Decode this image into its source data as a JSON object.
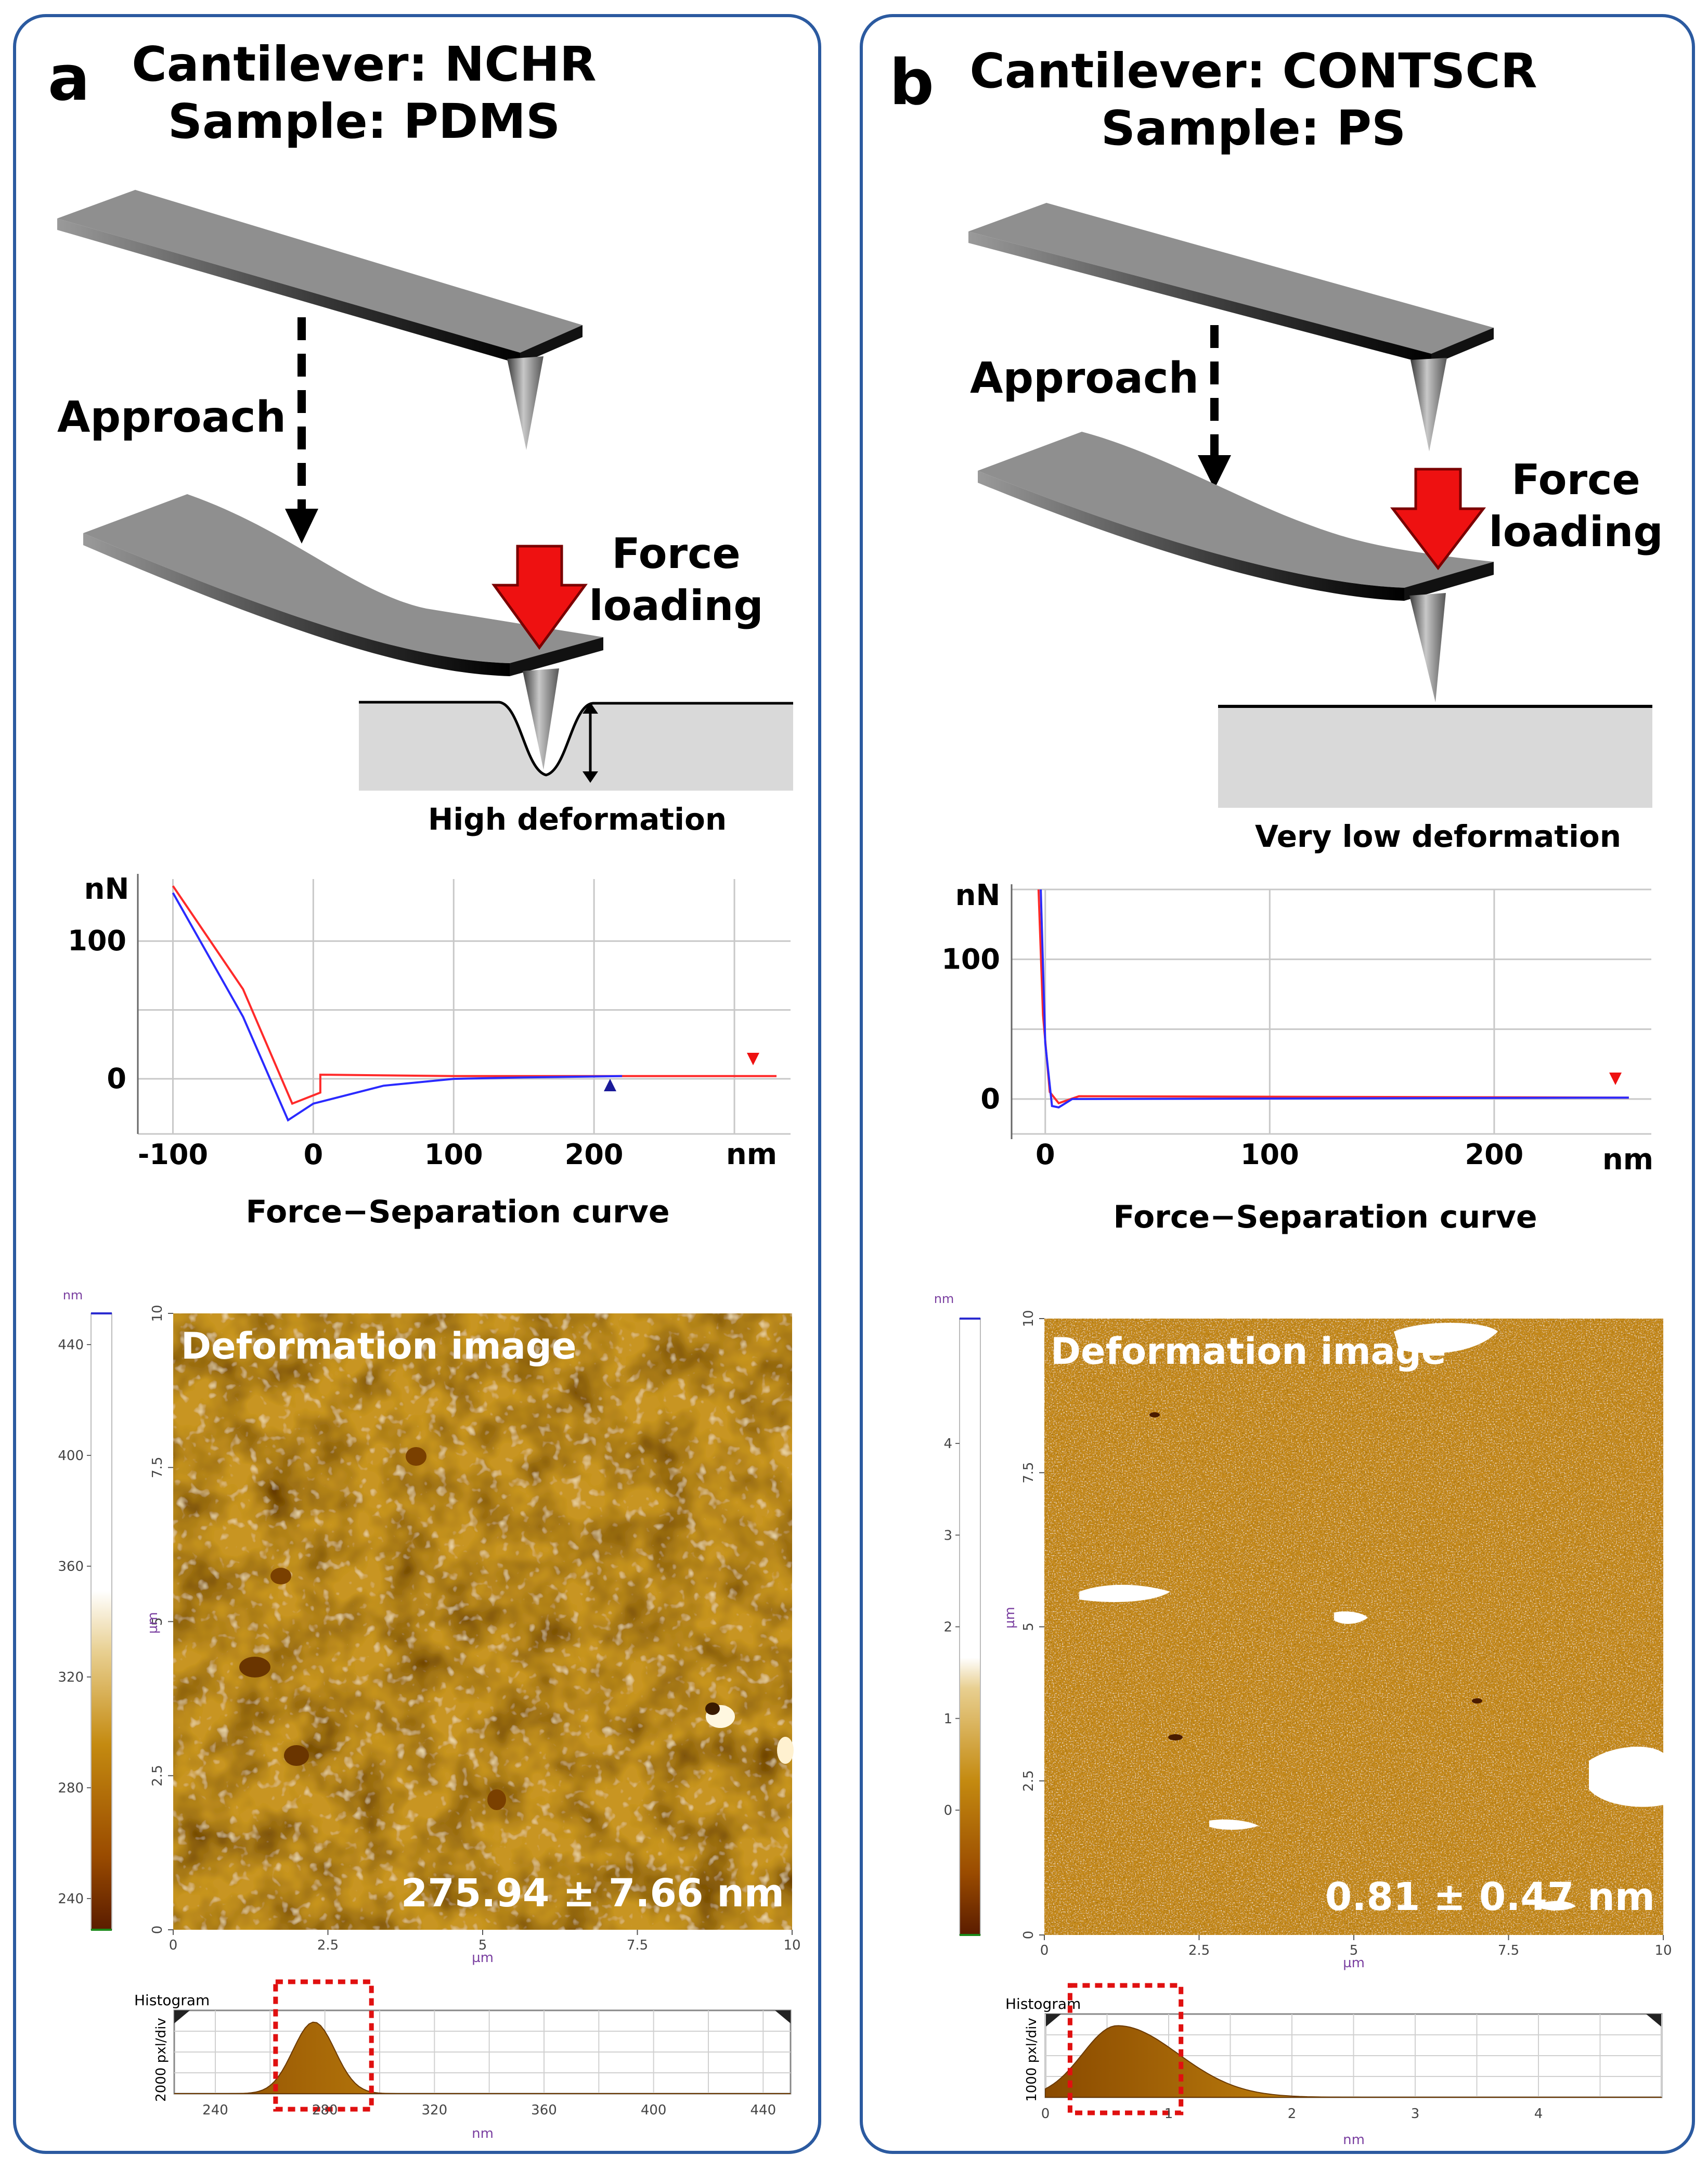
{
  "panels": [
    {
      "letter": "a",
      "title_line1": "Cantilever: NCHR",
      "title_line2": "Sample: PDMS",
      "approach_label": "Approach",
      "force_label_1": "Force",
      "force_label_2": "loading",
      "deformation_label": "High deformation",
      "curve_title": "Force−Separation curve",
      "overlay_title": "Deformation image",
      "measurement": "275.94 ± 7.66 nm",
      "histogram_label": "Histogram",
      "colorbar_unit": "nm",
      "colorbar_ticks": [
        "440",
        "400",
        "360",
        "320",
        "280",
        "240"
      ],
      "image_x_unit": "µm",
      "image_y_unit": "µm",
      "image_x_ticks": [
        "0",
        "2.5",
        "5",
        "7.5",
        "10"
      ],
      "image_y_ticks": [
        "10",
        "7.5",
        "5",
        "2.5",
        "0"
      ],
      "histogram_y_label": "2000 pxl/div",
      "histogram_x_unit": "nm"
    },
    {
      "letter": "b",
      "title_line1": "Cantilever: CONTSCR",
      "title_line2": "Sample: PS",
      "approach_label": "Approach",
      "force_label_1": "Force",
      "force_label_2": "loading",
      "deformation_label": "Very low deformation",
      "curve_title": "Force−Separation curve",
      "overlay_title": "Deformation image",
      "measurement": "0.81 ± 0.47 nm",
      "histogram_label": "Histogram",
      "colorbar_unit": "nm",
      "colorbar_ticks": [
        "4",
        "3",
        "2",
        "1",
        "0"
      ],
      "image_x_unit": "µm",
      "image_y_unit": "µm",
      "image_x_ticks": [
        "0",
        "2.5",
        "5",
        "7.5",
        "10"
      ],
      "image_y_ticks": [
        "10",
        "7.5",
        "5",
        "2.5",
        "0"
      ],
      "histogram_y_label": "1000 pxl/div",
      "histogram_x_unit": "nm"
    }
  ],
  "chart_data": [
    {
      "type": "line",
      "title": "Force−Separation curve",
      "xlabel": "nm",
      "ylabel": "nN",
      "x_ticks": [
        "-100",
        "0",
        "100",
        "200"
      ],
      "y_ticks": [
        "100",
        "0"
      ],
      "xlim": [
        -125,
        340
      ],
      "ylim": [
        -40,
        145
      ],
      "grid": true,
      "series": [
        {
          "color": "#ff2a2a",
          "x": [
            -100,
            -50,
            -15,
            5,
            5,
            100,
            330
          ],
          "y": [
            140,
            65,
            -18,
            -10,
            3,
            2,
            2
          ]
        },
        {
          "color": "#2a2aff",
          "x": [
            -100,
            -50,
            -18,
            0,
            50,
            100,
            150,
            220
          ],
          "y": [
            135,
            45,
            -30,
            -18,
            -5,
            0,
            1,
            2
          ]
        }
      ]
    },
    {
      "type": "line",
      "title": "Force−Separation curve",
      "xlabel": "nm",
      "ylabel": "nN",
      "x_ticks": [
        "0",
        "100",
        "200"
      ],
      "y_ticks": [
        "100",
        "0"
      ],
      "xlim": [
        -15,
        270
      ],
      "ylim": [
        -25,
        150
      ],
      "grid": true,
      "series": [
        {
          "color": "#ff2a2a",
          "x": [
            -3,
            -1,
            2,
            6,
            15,
            260
          ],
          "y": [
            150,
            60,
            5,
            -3,
            2,
            1
          ]
        },
        {
          "color": "#2a2aff",
          "x": [
            -2,
            0,
            3,
            6,
            12,
            260
          ],
          "y": [
            150,
            40,
            -5,
            -6,
            0,
            1
          ]
        }
      ]
    },
    {
      "type": "bar",
      "title": "Histogram",
      "xlabel": "nm",
      "x_ticks": [
        "240",
        "280",
        "320",
        "360",
        "400",
        "440"
      ],
      "xlim": [
        225,
        450
      ],
      "highlight_range": [
        262,
        297
      ],
      "shape": "gaussian",
      "mean": 276,
      "std": 7.66
    },
    {
      "type": "bar",
      "title": "Histogram",
      "xlabel": "nm",
      "x_ticks": [
        "0",
        "1",
        "2",
        "3",
        "4"
      ],
      "xlim": [
        0,
        5
      ],
      "highlight_range": [
        0.2,
        1.1
      ],
      "shape": "skewed",
      "mean": 0.81,
      "std": 0.47
    }
  ]
}
